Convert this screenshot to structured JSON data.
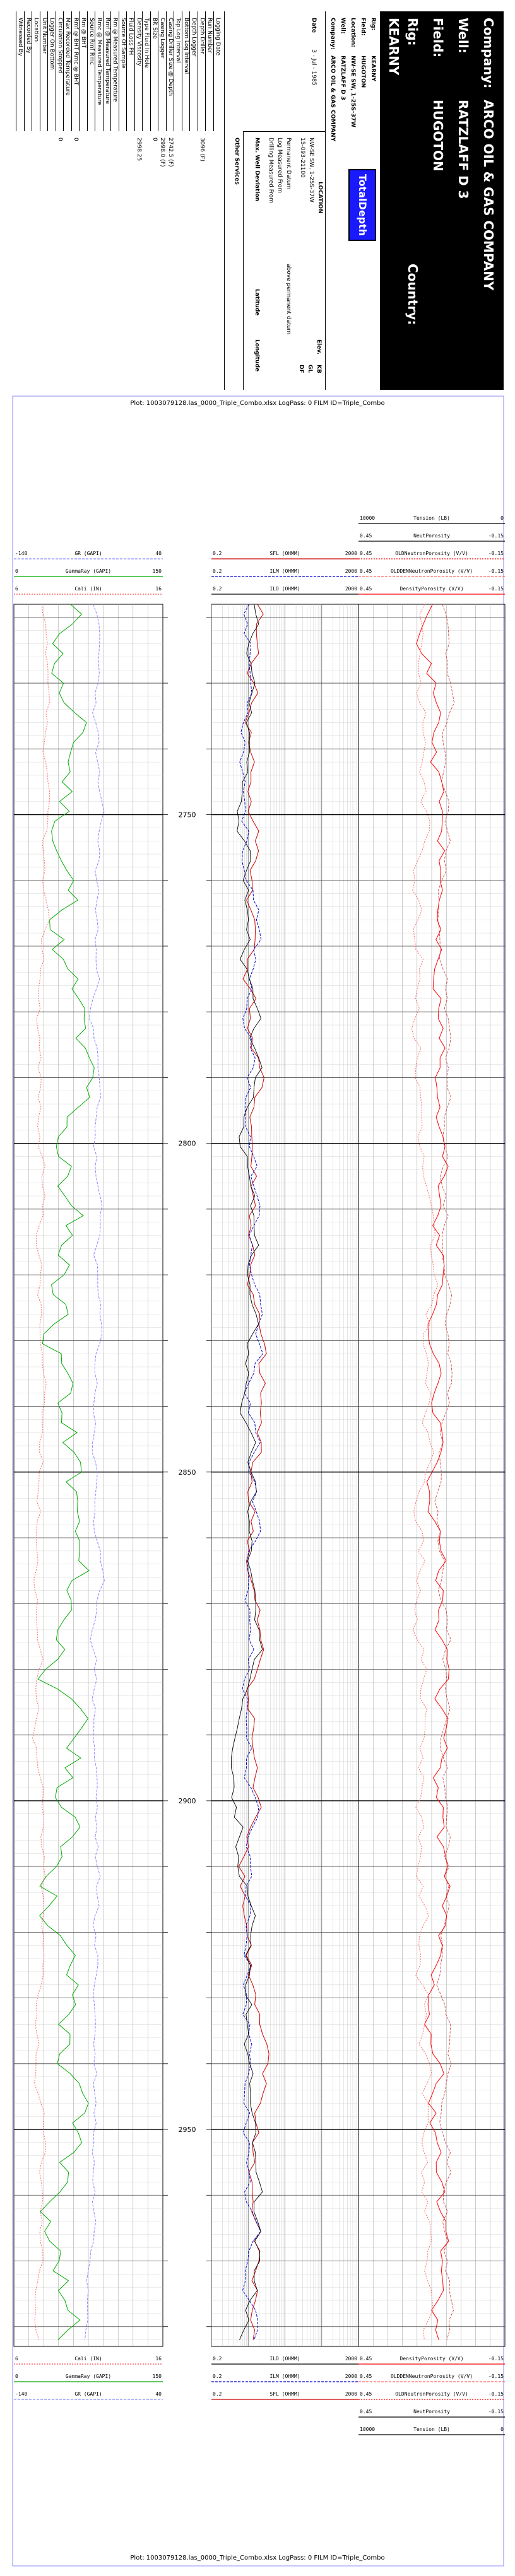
{
  "header": {
    "company_label": "Company:",
    "company": "ARCO OIL & GAS COMPANY",
    "well_label": "Well:",
    "well": "RATZLAFF D 3",
    "field_label": "Field:",
    "field": "HUGOTON",
    "rig_label": "Rig:",
    "rig": "KEARNY",
    "country_label": "Country:",
    "country": "",
    "small_rig_label": "Rig:",
    "small_rig": "KEARNY",
    "small_field_label": "Field:",
    "small_field": "HUGOTON",
    "location_label": "Location:",
    "location": "NW-SE SW, 1-25S-37W",
    "small_well_label": "Well:",
    "small_well": "RATZLAFF D 3",
    "small_company_label": "Company:",
    "small_company": "ARCO OIL & GAS COMPANY",
    "logo_text": "TotalDepth",
    "location_box_label": "LOCATION",
    "location_box_value": "NW-SE SW, 1-25S-37W",
    "api_value": "15-093-21100",
    "elev_label": "Elev.",
    "elev_kb": "KB",
    "elev_gl": "GL",
    "elev_df": "DF",
    "permanent_datum": "Permanent Datum",
    "log_measured_from": "Log Measured From",
    "drilling_measured_from": "Drilling Measured From",
    "above_perm_datum": "above permanent datum",
    "max_well_deviation": "Max. Well Deviation",
    "latitude": "Latitude",
    "longitude": "Longitude",
    "date_label": "Date",
    "date_value": "3 - Jul - 1985",
    "rows": [
      {
        "label": "Logging Date",
        "value": ""
      },
      {
        "label": "Run Number",
        "value": ""
      },
      {
        "label": "Depth Driller",
        "value": "3096 (F)"
      },
      {
        "label": "Depth Logger",
        "value": ""
      },
      {
        "label": "Bottom Log Interval",
        "value": ""
      },
      {
        "label": "Top Log Interval",
        "value": ""
      },
      {
        "label": "Casing Driller Size @ Depth",
        "value": "2742.5 (F)"
      },
      {
        "label": "Casing Logger",
        "value": "2998.0 (F)"
      },
      {
        "label": "Bit Size",
        "value": "0"
      },
      {
        "label": "Type Fluid In Hole",
        "value": ""
      },
      {
        "label": "Density Viscosity",
        "value": "2998.25"
      },
      {
        "label": "Fluid Loss PH",
        "value": ""
      },
      {
        "label": "Source Of Sample",
        "value": ""
      },
      {
        "label": "Rm @ Measured Temperature",
        "value": ""
      },
      {
        "label": "Rmf @ Measured Temperature",
        "value": ""
      },
      {
        "label": "Rmc @ Measured Temperature",
        "value": ""
      },
      {
        "label": "Source Rmf Rmc",
        "value": ""
      },
      {
        "label": "Rm @ BHT",
        "value": ""
      },
      {
        "label": "Rmf @ BHT Rmc @ BHT",
        "value": "0"
      },
      {
        "label": "Max Recorded Temperature",
        "value": ""
      },
      {
        "label": "Circulation Stopped",
        "value": "0"
      },
      {
        "label": "Logger On Bottom",
        "value": ""
      },
      {
        "label": "Unit Number",
        "value": ""
      },
      {
        "label": "Location",
        "value": ""
      },
      {
        "label": "Recorded By",
        "value": ""
      },
      {
        "label": "Witnessed By",
        "value": ""
      }
    ],
    "other_services": "Other Services"
  },
  "plot_title_top": "Plot: 1003079128.las_0000_Triple_Combo.xlsx LogPass: 0 FILM ID=Triple_Combo",
  "plot_title_bottom": "Plot: 1003079128.las_0000_Triple_Combo.xlsx LogPass: 0 FILM ID=Triple_Combo",
  "curves_top": {
    "track1": [
      {
        "name": "GR (GAPI)",
        "lo": "-140",
        "hi": "40",
        "color": "#8888ff",
        "dash": "4,2"
      },
      {
        "name": "GammaRay (GAPI)",
        "lo": "0",
        "hi": "150",
        "color": "#00aa00",
        "dash": ""
      },
      {
        "name": "Cali (IN)",
        "lo": "6",
        "hi": "16",
        "color": "#ff4444",
        "dash": "2,2"
      }
    ],
    "track2": [
      {
        "name": "SFL (OHMM)",
        "lo": "0.2",
        "hi": "2000",
        "color": "#cc0000",
        "dash": ""
      },
      {
        "name": "ILM (OHMM)",
        "lo": "0.2",
        "hi": "2000",
        "color": "#0000cc",
        "dash": "4,2"
      },
      {
        "name": "ILD (OHMM)",
        "lo": "0.2",
        "hi": "2000",
        "color": "#000000",
        "dash": ""
      }
    ],
    "track3": [
      {
        "name": "Tension (LB)",
        "lo": "10000",
        "hi": "0",
        "color": "#000000",
        "dash": ""
      },
      {
        "name": "NeutPorosity",
        "lo": "0.45",
        "hi": "-0.15",
        "color": "#000000",
        "dash": ""
      },
      {
        "name": "OLDNeutronPorosity (V/V)",
        "lo": "0.45",
        "hi": "-0.15",
        "color": "#ff0000",
        "dash": "2,2"
      },
      {
        "name": "OLDDENNeutronPorosity (V/V)",
        "lo": "0.45",
        "hi": "-0.15",
        "color": "#ff6666",
        "dash": "4,2"
      },
      {
        "name": "DensityPorosity (V/V)",
        "lo": "0.45",
        "hi": "-0.15",
        "color": "#ff0000",
        "dash": ""
      }
    ]
  },
  "depths": [
    "2750",
    "2800",
    "2850",
    "2900",
    "2950"
  ],
  "colors": {
    "logo_bg": "#1a1aff",
    "header_bg": "#000000"
  }
}
